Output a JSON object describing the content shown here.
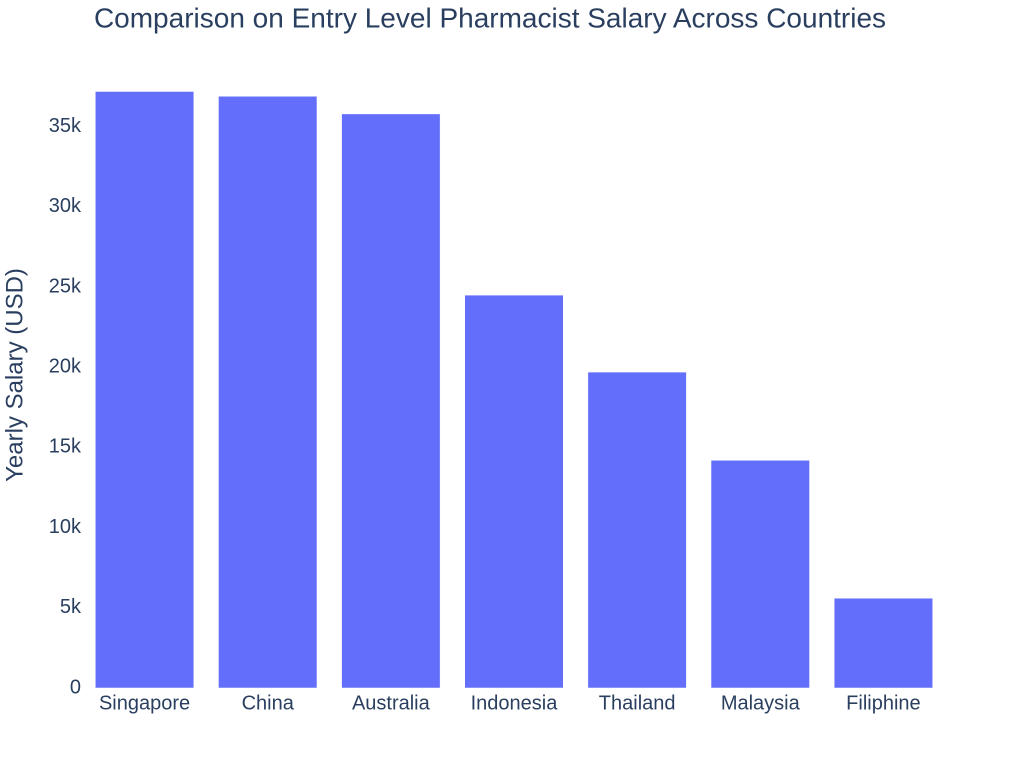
{
  "chart_data": {
    "type": "bar",
    "title": "Comparison on Entry Level Pharmacist Salary Across Countries",
    "y_label": "Yearly Salary (USD)",
    "categories": [
      "Singapore",
      "China",
      "Australia",
      "Indonesia",
      "Thailand",
      "Malaysia",
      "Filiphine"
    ],
    "values": [
      37200,
      36900,
      35800,
      24500,
      19700,
      14200,
      5600
    ],
    "color": "#636efa",
    "ylim": [
      0,
      39100
    ],
    "yticks": [
      0,
      {
        "value": 5000,
        "label": "5k"
      },
      {
        "value": 10000,
        "label": "10k"
      },
      {
        "value": 15000,
        "label": "15k"
      },
      {
        "value": 20000,
        "label": "20k"
      },
      {
        "value": 25000,
        "label": "25k"
      },
      {
        "value": 30000,
        "label": "30k"
      },
      {
        "value": 35000,
        "label": "35k"
      }
    ],
    "grid": false
  }
}
